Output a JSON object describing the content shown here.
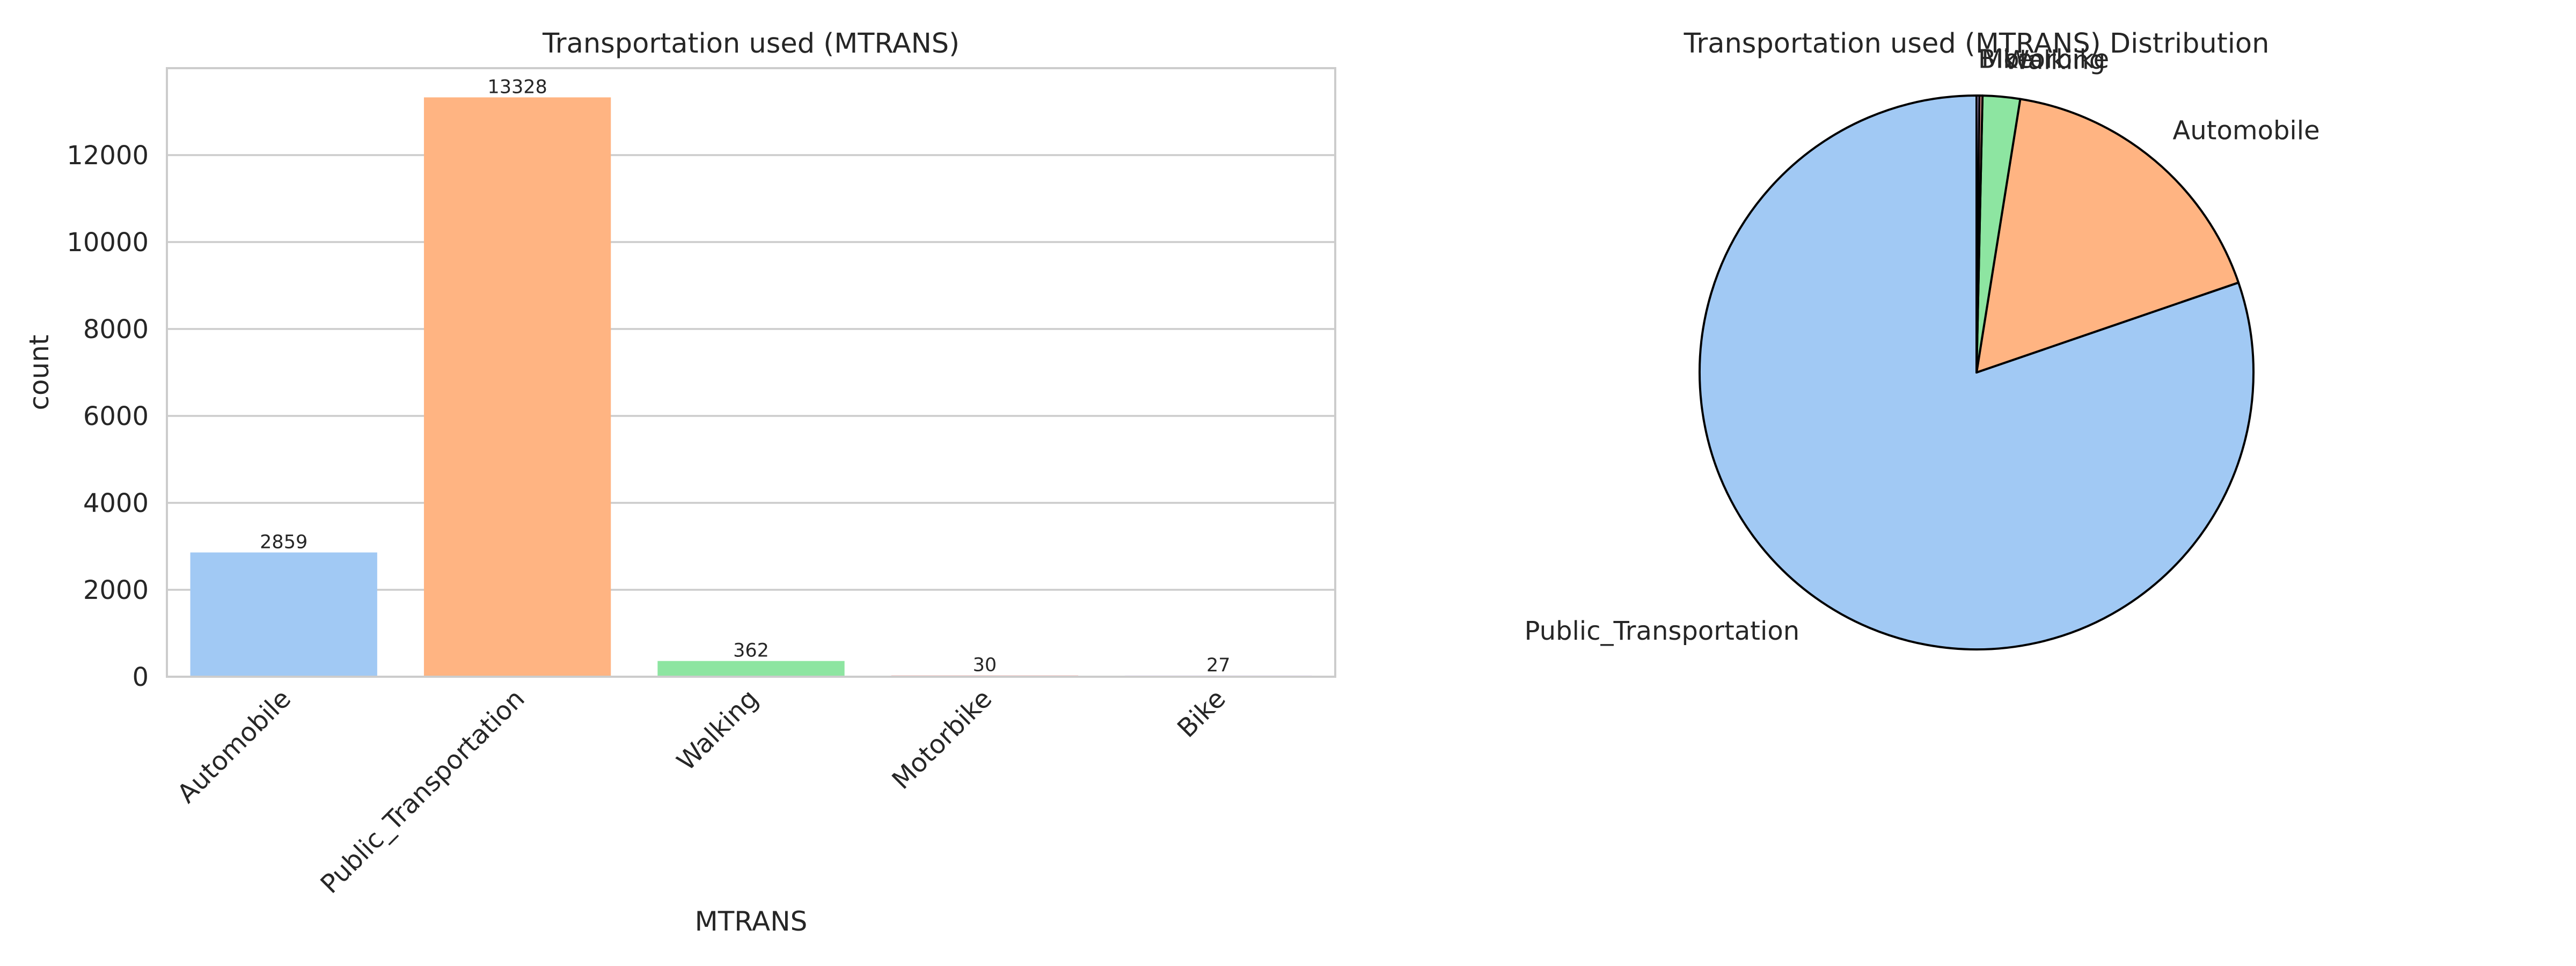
{
  "chart_data": [
    {
      "type": "bar",
      "title": "Transportation used (MTRANS)",
      "xlabel": "MTRANS",
      "ylabel": "count",
      "categories": [
        "Automobile",
        "Public_Transportation",
        "Walking",
        "Motorbike",
        "Bike"
      ],
      "values": [
        2859,
        13328,
        362,
        30,
        27
      ],
      "value_labels": [
        "2859",
        "13328",
        "362",
        "30",
        "27"
      ],
      "colors": [
        "#a1c9f4",
        "#ffb482",
        "#8de5a1",
        "#ff9f9b",
        "#d0bbff"
      ],
      "ylim": [
        0,
        14000
      ],
      "yticks": [
        0,
        2000,
        4000,
        6000,
        8000,
        10000,
        12000
      ],
      "ytick_labels": [
        "0",
        "2000",
        "4000",
        "6000",
        "8000",
        "10000",
        "12000"
      ],
      "grid": true
    },
    {
      "type": "pie",
      "title": "Transportation used (MTRANS) Distribution",
      "labels": [
        "Public_Transportation",
        "Automobile",
        "Walking",
        "Motorbike",
        "Bike"
      ],
      "values": [
        13328,
        2859,
        362,
        30,
        27
      ],
      "colors": [
        "#a1c9f4",
        "#ffb482",
        "#8de5a1",
        "#ff9f9b",
        "#d0bbff"
      ],
      "start_angle_deg": 90,
      "direction": "counterclockwise"
    }
  ]
}
